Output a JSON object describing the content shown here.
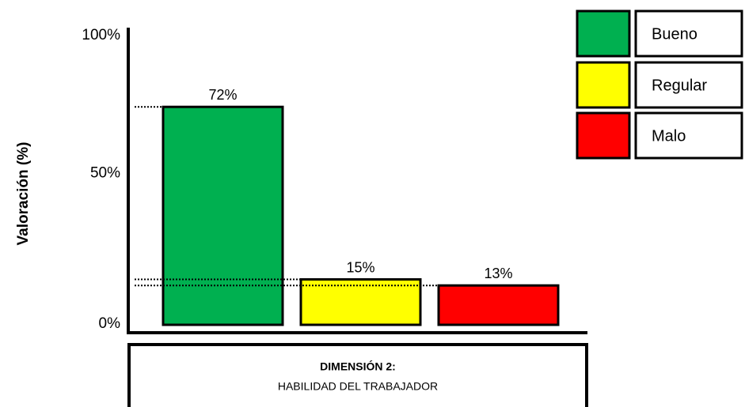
{
  "chart_data": {
    "type": "bar",
    "ylabel": "Valoración (%)",
    "xlabel_title": "DIMENSIÓN 2:",
    "xlabel": "HABILIDAD DEL TRABAJADOR",
    "categories": [
      "Bueno",
      "Regular",
      "Malo"
    ],
    "values": [
      72,
      15,
      13
    ],
    "value_labels": [
      "72%",
      "15%",
      "13%"
    ],
    "colors": [
      "#00b050",
      "#ffff00",
      "#ff0000"
    ],
    "ylim": [
      0,
      100
    ],
    "yticks": [
      {
        "value": 0,
        "label": "0%"
      },
      {
        "value": 50,
        "label": "50%"
      },
      {
        "value": 100,
        "label": "100%"
      }
    ],
    "legend": "top-right"
  }
}
